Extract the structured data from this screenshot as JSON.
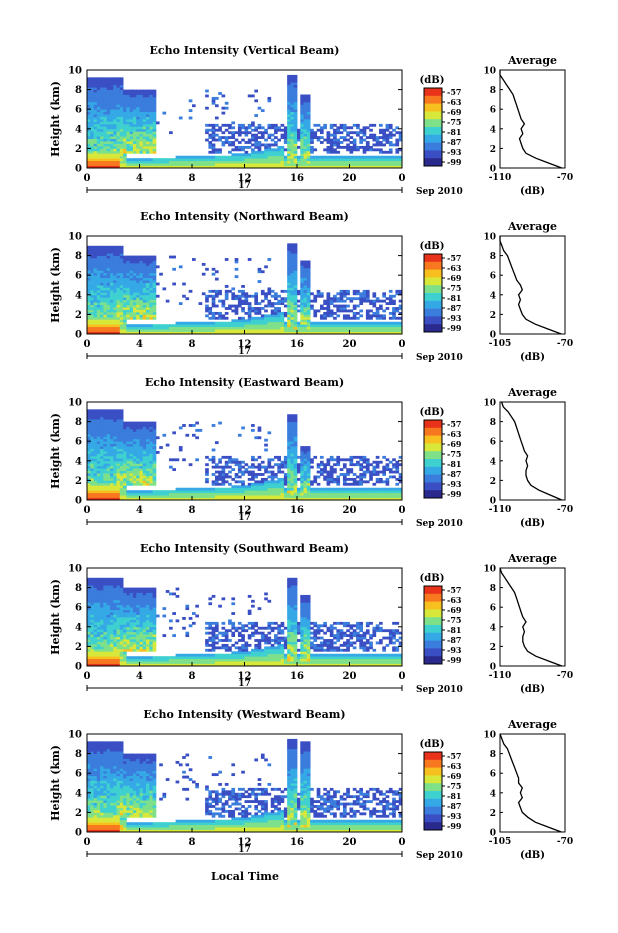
{
  "colors": {
    "colormap": [
      "#2a2a8e",
      "#3a4fc4",
      "#3b7ddc",
      "#35a9e6",
      "#3fd0d0",
      "#7fe08a",
      "#d8e83a",
      "#f7c01e",
      "#f7781e",
      "#e8321a"
    ],
    "axis": "#000000"
  },
  "shared": {
    "ylabel": "Height (km)",
    "unit_label": "(dB)",
    "colorbar_ticks": [
      "-57",
      "-63",
      "-69",
      "-75",
      "-81",
      "-87",
      "-93",
      "-99"
    ],
    "avg_title": "Average",
    "avg_xlabel": "(dB)",
    "date_day": "17",
    "date_label": "Sep 2010",
    "xlabel_bottom": "Local Time"
  },
  "chart_data": [
    {
      "type": "heatmap",
      "title": "Echo Intensity (Vertical Beam)",
      "x_ticks": [
        "0",
        "4",
        "8",
        "12",
        "16",
        "20",
        "0"
      ],
      "y_ticks": [
        "0",
        "2",
        "4",
        "6",
        "8",
        "10"
      ],
      "xlim": [
        0,
        24
      ],
      "ylim": [
        0,
        10
      ],
      "cloud_events": [
        {
          "t_start": 0.0,
          "t_end": 2.8,
          "top_km": 9.2,
          "base_km": 0.0
        },
        {
          "t_start": 2.2,
          "t_end": 5.2,
          "top_km": 8.0,
          "base_km": 1.5
        },
        {
          "t_start": 15.3,
          "t_end": 16.0,
          "top_km": 9.5,
          "base_km": 0.5
        },
        {
          "t_start": 16.3,
          "t_end": 17.1,
          "top_km": 7.5,
          "base_km": 0.5
        }
      ],
      "average": {
        "xlim": [
          -110,
          -70
        ],
        "x_ticks": [
          "-110",
          "-70"
        ],
        "y_ticks": [
          "0",
          "2",
          "4",
          "6",
          "8",
          "10"
        ],
        "height_km": [
          0,
          0.5,
          1,
          1.5,
          2,
          2.5,
          3,
          3.5,
          4,
          4.5,
          5,
          5.5,
          6,
          6.5,
          7,
          7.5,
          8,
          8.5,
          9,
          9.5,
          10
        ],
        "db": [
          -72,
          -80,
          -88,
          -94,
          -96,
          -97,
          -98,
          -96,
          -97,
          -95,
          -97,
          -98,
          -99,
          -100,
          -101,
          -102,
          -104,
          -106,
          -108,
          -110,
          -110
        ]
      }
    },
    {
      "type": "heatmap",
      "title": "Echo Intensity (Northward Beam)",
      "x_ticks": [
        "0",
        "4",
        "8",
        "12",
        "16",
        "20",
        "0"
      ],
      "y_ticks": [
        "0",
        "2",
        "4",
        "6",
        "8",
        "10"
      ],
      "xlim": [
        0,
        24
      ],
      "ylim": [
        0,
        10
      ],
      "cloud_events": [
        {
          "t_start": 0.0,
          "t_end": 2.8,
          "top_km": 9.0,
          "base_km": 0.0
        },
        {
          "t_start": 2.2,
          "t_end": 5.2,
          "top_km": 8.0,
          "base_km": 1.5
        },
        {
          "t_start": 15.3,
          "t_end": 16.0,
          "top_km": 9.2,
          "base_km": 0.5
        },
        {
          "t_start": 16.3,
          "t_end": 17.1,
          "top_km": 7.5,
          "base_km": 0.5
        }
      ],
      "average": {
        "xlim": [
          -105,
          -70
        ],
        "x_ticks": [
          "-105",
          "-70"
        ],
        "y_ticks": [
          "0",
          "2",
          "4",
          "6",
          "8",
          "10"
        ],
        "height_km": [
          0,
          0.5,
          1,
          1.5,
          2,
          2.5,
          3,
          3.5,
          4,
          4.5,
          5,
          5.5,
          6,
          6.5,
          7,
          7.5,
          8,
          8.5,
          9,
          9.5,
          10
        ],
        "db": [
          -72,
          -79,
          -86,
          -91,
          -93,
          -94,
          -95,
          -94,
          -95,
          -93,
          -94,
          -96,
          -97,
          -98,
          -99,
          -100,
          -101,
          -103,
          -104,
          -105,
          -105
        ]
      }
    },
    {
      "type": "heatmap",
      "title": "Echo Intensity (Eastward Beam)",
      "x_ticks": [
        "0",
        "4",
        "8",
        "12",
        "16",
        "20",
        "0"
      ],
      "y_ticks": [
        "0",
        "2",
        "4",
        "6",
        "8",
        "10"
      ],
      "xlim": [
        0,
        24
      ],
      "ylim": [
        0,
        10
      ],
      "cloud_events": [
        {
          "t_start": 0.0,
          "t_end": 2.8,
          "top_km": 9.3,
          "base_km": 0.0
        },
        {
          "t_start": 2.2,
          "t_end": 5.2,
          "top_km": 8.0,
          "base_km": 1.5
        },
        {
          "t_start": 15.3,
          "t_end": 16.0,
          "top_km": 8.8,
          "base_km": 0.5
        },
        {
          "t_start": 16.3,
          "t_end": 17.1,
          "top_km": 5.5,
          "base_km": 0.5
        }
      ],
      "average": {
        "xlim": [
          -110,
          -70
        ],
        "x_ticks": [
          "-110",
          "-70"
        ],
        "y_ticks": [
          "0",
          "2",
          "4",
          "6",
          "8",
          "10"
        ],
        "height_km": [
          0,
          0.5,
          1,
          1.5,
          2,
          2.5,
          3,
          3.5,
          4,
          4.5,
          5,
          5.5,
          6,
          6.5,
          7,
          7.5,
          8,
          8.5,
          9,
          9.5,
          10
        ],
        "db": [
          -72,
          -79,
          -86,
          -91,
          -93,
          -94,
          -94,
          -93,
          -94,
          -93,
          -95,
          -96,
          -97,
          -98,
          -99,
          -100,
          -101,
          -103,
          -105,
          -108,
          -109
        ]
      }
    },
    {
      "type": "heatmap",
      "title": "Echo Intensity (Southward Beam)",
      "x_ticks": [
        "0",
        "4",
        "8",
        "12",
        "16",
        "20",
        "0"
      ],
      "y_ticks": [
        "0",
        "2",
        "4",
        "6",
        "8",
        "10"
      ],
      "xlim": [
        0,
        24
      ],
      "ylim": [
        0,
        10
      ],
      "cloud_events": [
        {
          "t_start": 0.0,
          "t_end": 2.8,
          "top_km": 9.0,
          "base_km": 0.0
        },
        {
          "t_start": 2.2,
          "t_end": 5.2,
          "top_km": 8.0,
          "base_km": 1.5
        },
        {
          "t_start": 15.3,
          "t_end": 16.0,
          "top_km": 9.0,
          "base_km": 0.5
        },
        {
          "t_start": 16.3,
          "t_end": 17.1,
          "top_km": 7.2,
          "base_km": 0.5
        }
      ],
      "average": {
        "xlim": [
          -110,
          -70
        ],
        "x_ticks": [
          "-110",
          "-70"
        ],
        "y_ticks": [
          "0",
          "2",
          "4",
          "6",
          "8",
          "10"
        ],
        "height_km": [
          0,
          0.5,
          1,
          1.5,
          2,
          2.5,
          3,
          3.5,
          4,
          4.5,
          5,
          5.5,
          6,
          6.5,
          7,
          7.5,
          8,
          8.5,
          9,
          9.5,
          10
        ],
        "db": [
          -72,
          -80,
          -88,
          -93,
          -95,
          -96,
          -96,
          -95,
          -96,
          -94,
          -96,
          -97,
          -98,
          -99,
          -100,
          -101,
          -103,
          -105,
          -107,
          -109,
          -110
        ]
      }
    },
    {
      "type": "heatmap",
      "title": "Echo Intensity (Westward Beam)",
      "x_ticks": [
        "0",
        "4",
        "8",
        "12",
        "16",
        "20",
        "0"
      ],
      "y_ticks": [
        "0",
        "2",
        "4",
        "6",
        "8",
        "10"
      ],
      "xlim": [
        0,
        24
      ],
      "ylim": [
        0,
        10
      ],
      "cloud_events": [
        {
          "t_start": 0.0,
          "t_end": 2.8,
          "top_km": 9.3,
          "base_km": 0.0
        },
        {
          "t_start": 2.2,
          "t_end": 5.2,
          "top_km": 8.0,
          "base_km": 1.5
        },
        {
          "t_start": 15.3,
          "t_end": 16.0,
          "top_km": 9.5,
          "base_km": 0.5
        },
        {
          "t_start": 16.3,
          "t_end": 17.1,
          "top_km": 9.3,
          "base_km": 0.5
        }
      ],
      "average": {
        "xlim": [
          -105,
          -70
        ],
        "x_ticks": [
          "-105",
          "-70"
        ],
        "y_ticks": [
          "0",
          "2",
          "4",
          "6",
          "8",
          "10"
        ],
        "height_km": [
          0,
          0.5,
          1,
          1.5,
          2,
          2.5,
          3,
          3.5,
          4,
          4.5,
          5,
          5.5,
          6,
          6.5,
          7,
          7.5,
          8,
          8.5,
          9,
          9.5,
          10
        ],
        "db": [
          -72,
          -79,
          -86,
          -90,
          -93,
          -94,
          -95,
          -93,
          -94,
          -93,
          -95,
          -95,
          -96,
          -97,
          -98,
          -99,
          -100,
          -101,
          -103,
          -104,
          -105
        ]
      }
    }
  ]
}
